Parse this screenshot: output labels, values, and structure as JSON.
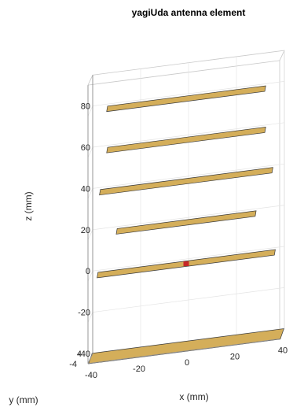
{
  "chart_data": {
    "type": "3d-structure",
    "title": "yagiUda antenna element",
    "xlabel": "x (mm)",
    "ylabel": "y (mm)",
    "zlabel": "z (mm)",
    "xlim": [
      -40,
      40
    ],
    "ylim": [
      -4,
      4
    ],
    "zlim": [
      -40,
      95
    ],
    "x_ticks": [
      "-40",
      "-20",
      "0",
      "20",
      "40"
    ],
    "y_ticks": [
      "-4",
      "4"
    ],
    "z_ticks": [
      "-40",
      "-20",
      "0",
      "20",
      "40",
      "60",
      "80"
    ],
    "grid": true,
    "element_color": "#D4AE5A",
    "feed_color": "#C62828",
    "elements": [
      {
        "name": "reflector plane",
        "z": -40,
        "x_from": -40,
        "x_to": 40
      },
      {
        "name": "driven dipole",
        "z": 0,
        "x_from": -37,
        "x_to": 37,
        "feed": true
      },
      {
        "name": "director 1",
        "z": 20,
        "x_from": -29,
        "x_to": 29
      },
      {
        "name": "director 2",
        "z": 40,
        "x_from": -36,
        "x_to": 36
      },
      {
        "name": "director 3",
        "z": 60,
        "x_from": -33,
        "x_to": 33
      },
      {
        "name": "director 4",
        "z": 80,
        "x_from": -33,
        "x_to": 33
      }
    ]
  }
}
